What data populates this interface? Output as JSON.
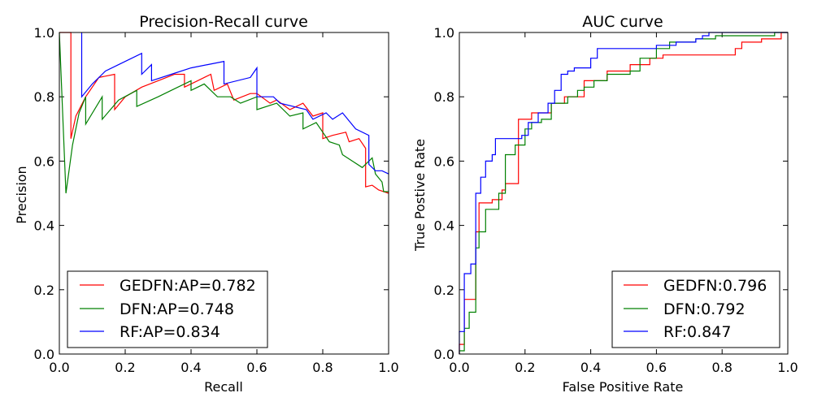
{
  "chart_data": [
    {
      "type": "line",
      "title": "Precision-Recall curve",
      "xlabel": "Recall",
      "ylabel": "Precision",
      "xlim": [
        0.0,
        1.0
      ],
      "ylim": [
        0.0,
        1.0
      ],
      "x_ticks": [
        "0.0",
        "0.2",
        "0.4",
        "0.6",
        "0.8",
        "1.0"
      ],
      "y_ticks": [
        "0.0",
        "0.2",
        "0.4",
        "0.6",
        "0.8",
        "1.0"
      ],
      "grid": false,
      "legend_position": "bottom-left",
      "series": [
        {
          "name": "GEDFN",
          "label": "GEDFN:AP=0.782",
          "color": "#ff0000",
          "points": [
            [
              0,
              1
            ],
            [
              0.035,
              1
            ],
            [
              0.035,
              0.67
            ],
            [
              0.05,
              0.74
            ],
            [
              0.08,
              0.8
            ],
            [
              0.12,
              0.86
            ],
            [
              0.168,
              0.87
            ],
            [
              0.168,
              0.76
            ],
            [
              0.2,
              0.8
            ],
            [
              0.25,
              0.83
            ],
            [
              0.3,
              0.85
            ],
            [
              0.35,
              0.87
            ],
            [
              0.38,
              0.87
            ],
            [
              0.38,
              0.83
            ],
            [
              0.42,
              0.85
            ],
            [
              0.46,
              0.87
            ],
            [
              0.47,
              0.82
            ],
            [
              0.51,
              0.84
            ],
            [
              0.53,
              0.79
            ],
            [
              0.58,
              0.81
            ],
            [
              0.6,
              0.81
            ],
            [
              0.64,
              0.78
            ],
            [
              0.66,
              0.79
            ],
            [
              0.7,
              0.76
            ],
            [
              0.74,
              0.78
            ],
            [
              0.77,
              0.74
            ],
            [
              0.8,
              0.75
            ],
            [
              0.8,
              0.67
            ],
            [
              0.83,
              0.68
            ],
            [
              0.87,
              0.69
            ],
            [
              0.88,
              0.66
            ],
            [
              0.91,
              0.67
            ],
            [
              0.93,
              0.64
            ],
            [
              0.93,
              0.52
            ],
            [
              0.95,
              0.525
            ],
            [
              0.97,
              0.51
            ],
            [
              1.0,
              0.5
            ]
          ]
        },
        {
          "name": "DFN",
          "label": "DFN:AP=0.748",
          "color": "#008000",
          "points": [
            [
              0,
              1
            ],
            [
              0.02,
              0.5
            ],
            [
              0.04,
              0.65
            ],
            [
              0.06,
              0.75
            ],
            [
              0.08,
              0.8
            ],
            [
              0.08,
              0.715
            ],
            [
              0.13,
              0.8
            ],
            [
              0.13,
              0.73
            ],
            [
              0.18,
              0.79
            ],
            [
              0.235,
              0.82
            ],
            [
              0.235,
              0.77
            ],
            [
              0.3,
              0.8
            ],
            [
              0.36,
              0.83
            ],
            [
              0.4,
              0.85
            ],
            [
              0.4,
              0.82
            ],
            [
              0.44,
              0.84
            ],
            [
              0.48,
              0.8
            ],
            [
              0.52,
              0.8
            ],
            [
              0.55,
              0.78
            ],
            [
              0.6,
              0.8
            ],
            [
              0.6,
              0.76
            ],
            [
              0.66,
              0.78
            ],
            [
              0.7,
              0.74
            ],
            [
              0.74,
              0.75
            ],
            [
              0.74,
              0.7
            ],
            [
              0.78,
              0.72
            ],
            [
              0.8,
              0.69
            ],
            [
              0.82,
              0.66
            ],
            [
              0.85,
              0.65
            ],
            [
              0.86,
              0.62
            ],
            [
              0.89,
              0.6
            ],
            [
              0.92,
              0.58
            ],
            [
              0.95,
              0.61
            ],
            [
              0.96,
              0.56
            ],
            [
              0.98,
              0.535
            ],
            [
              0.985,
              0.505
            ],
            [
              1.0,
              0.505
            ]
          ]
        },
        {
          "name": "RF",
          "label": "RF:AP=0.834",
          "color": "#0000ff",
          "points": [
            [
              0.068,
              1
            ],
            [
              0.068,
              0.8
            ],
            [
              0.1,
              0.84
            ],
            [
              0.14,
              0.88
            ],
            [
              0.18,
              0.9
            ],
            [
              0.25,
              0.935
            ],
            [
              0.25,
              0.87
            ],
            [
              0.28,
              0.9
            ],
            [
              0.28,
              0.85
            ],
            [
              0.34,
              0.87
            ],
            [
              0.4,
              0.89
            ],
            [
              0.45,
              0.9
            ],
            [
              0.5,
              0.91
            ],
            [
              0.5,
              0.84
            ],
            [
              0.58,
              0.86
            ],
            [
              0.6,
              0.89
            ],
            [
              0.6,
              0.8
            ],
            [
              0.65,
              0.8
            ],
            [
              0.67,
              0.78
            ],
            [
              0.75,
              0.76
            ],
            [
              0.77,
              0.73
            ],
            [
              0.81,
              0.75
            ],
            [
              0.83,
              0.73
            ],
            [
              0.86,
              0.75
            ],
            [
              0.9,
              0.7
            ],
            [
              0.94,
              0.68
            ],
            [
              0.94,
              0.59
            ],
            [
              0.96,
              0.57
            ],
            [
              0.98,
              0.57
            ],
            [
              1.0,
              0.56
            ]
          ]
        }
      ]
    },
    {
      "type": "line",
      "title": "AUC curve",
      "xlabel": "False Positive Rate",
      "ylabel": "True Postive Rate",
      "xlim": [
        0.0,
        1.0
      ],
      "ylim": [
        0.0,
        1.0
      ],
      "x_ticks": [
        "0.0",
        "0.2",
        "0.4",
        "0.6",
        "0.8",
        "1.0"
      ],
      "y_ticks": [
        "0.0",
        "0.2",
        "0.4",
        "0.6",
        "0.8",
        "1.0"
      ],
      "grid": false,
      "legend_position": "bottom-right",
      "series": [
        {
          "name": "GEDFN",
          "label": "GEDFN:0.796",
          "color": "#ff0000",
          "points": [
            [
              0,
              0
            ],
            [
              0,
              0.03
            ],
            [
              0.015,
              0.03
            ],
            [
              0.015,
              0.17
            ],
            [
              0.05,
              0.17
            ],
            [
              0.05,
              0.38
            ],
            [
              0.06,
              0.38
            ],
            [
              0.06,
              0.47
            ],
            [
              0.1,
              0.47
            ],
            [
              0.1,
              0.48
            ],
            [
              0.13,
              0.48
            ],
            [
              0.13,
              0.51
            ],
            [
              0.14,
              0.51
            ],
            [
              0.14,
              0.53
            ],
            [
              0.18,
              0.53
            ],
            [
              0.18,
              0.73
            ],
            [
              0.22,
              0.73
            ],
            [
              0.22,
              0.75
            ],
            [
              0.28,
              0.75
            ],
            [
              0.28,
              0.78
            ],
            [
              0.32,
              0.78
            ],
            [
              0.32,
              0.8
            ],
            [
              0.38,
              0.8
            ],
            [
              0.38,
              0.85
            ],
            [
              0.45,
              0.85
            ],
            [
              0.45,
              0.88
            ],
            [
              0.52,
              0.88
            ],
            [
              0.52,
              0.9
            ],
            [
              0.58,
              0.9
            ],
            [
              0.58,
              0.92
            ],
            [
              0.62,
              0.92
            ],
            [
              0.62,
              0.93
            ],
            [
              0.7,
              0.93
            ],
            [
              0.7,
              0.93
            ],
            [
              0.84,
              0.93
            ],
            [
              0.84,
              0.95
            ],
            [
              0.86,
              0.95
            ],
            [
              0.86,
              0.97
            ],
            [
              0.92,
              0.97
            ],
            [
              0.92,
              0.98
            ],
            [
              0.98,
              0.98
            ],
            [
              0.98,
              1.0
            ],
            [
              1.0,
              1.0
            ]
          ]
        },
        {
          "name": "DFN",
          "label": "DFN:0.792",
          "color": "#008000",
          "points": [
            [
              0,
              0
            ],
            [
              0,
              0.01
            ],
            [
              0.015,
              0.01
            ],
            [
              0.015,
              0.08
            ],
            [
              0.03,
              0.08
            ],
            [
              0.03,
              0.13
            ],
            [
              0.05,
              0.13
            ],
            [
              0.05,
              0.33
            ],
            [
              0.06,
              0.33
            ],
            [
              0.06,
              0.38
            ],
            [
              0.08,
              0.38
            ],
            [
              0.08,
              0.45
            ],
            [
              0.12,
              0.45
            ],
            [
              0.12,
              0.5
            ],
            [
              0.14,
              0.5
            ],
            [
              0.14,
              0.62
            ],
            [
              0.17,
              0.62
            ],
            [
              0.17,
              0.65
            ],
            [
              0.2,
              0.65
            ],
            [
              0.2,
              0.7
            ],
            [
              0.22,
              0.7
            ],
            [
              0.22,
              0.72
            ],
            [
              0.25,
              0.72
            ],
            [
              0.25,
              0.73
            ],
            [
              0.28,
              0.73
            ],
            [
              0.28,
              0.78
            ],
            [
              0.33,
              0.78
            ],
            [
              0.33,
              0.8
            ],
            [
              0.36,
              0.8
            ],
            [
              0.36,
              0.82
            ],
            [
              0.38,
              0.82
            ],
            [
              0.38,
              0.83
            ],
            [
              0.41,
              0.83
            ],
            [
              0.41,
              0.85
            ],
            [
              0.45,
              0.85
            ],
            [
              0.45,
              0.87
            ],
            [
              0.52,
              0.87
            ],
            [
              0.52,
              0.88
            ],
            [
              0.55,
              0.88
            ],
            [
              0.55,
              0.92
            ],
            [
              0.6,
              0.92
            ],
            [
              0.6,
              0.95
            ],
            [
              0.64,
              0.95
            ],
            [
              0.64,
              0.97
            ],
            [
              0.72,
              0.97
            ],
            [
              0.72,
              0.98
            ],
            [
              0.78,
              0.98
            ],
            [
              0.78,
              0.99
            ],
            [
              0.96,
              0.99
            ],
            [
              0.96,
              1.0
            ],
            [
              1.0,
              1.0
            ]
          ]
        },
        {
          "name": "RF",
          "label": "RF:0.847",
          "color": "#0000ff",
          "points": [
            [
              0,
              0
            ],
            [
              0,
              0.07
            ],
            [
              0.015,
              0.07
            ],
            [
              0.015,
              0.25
            ],
            [
              0.035,
              0.25
            ],
            [
              0.035,
              0.28
            ],
            [
              0.05,
              0.28
            ],
            [
              0.05,
              0.5
            ],
            [
              0.065,
              0.5
            ],
            [
              0.065,
              0.55
            ],
            [
              0.08,
              0.55
            ],
            [
              0.08,
              0.6
            ],
            [
              0.1,
              0.6
            ],
            [
              0.1,
              0.62
            ],
            [
              0.11,
              0.62
            ],
            [
              0.11,
              0.67
            ],
            [
              0.19,
              0.67
            ],
            [
              0.19,
              0.68
            ],
            [
              0.21,
              0.68
            ],
            [
              0.21,
              0.72
            ],
            [
              0.24,
              0.72
            ],
            [
              0.24,
              0.75
            ],
            [
              0.27,
              0.75
            ],
            [
              0.27,
              0.78
            ],
            [
              0.29,
              0.78
            ],
            [
              0.29,
              0.82
            ],
            [
              0.31,
              0.82
            ],
            [
              0.31,
              0.87
            ],
            [
              0.33,
              0.87
            ],
            [
              0.33,
              0.88
            ],
            [
              0.35,
              0.88
            ],
            [
              0.35,
              0.89
            ],
            [
              0.4,
              0.89
            ],
            [
              0.4,
              0.92
            ],
            [
              0.42,
              0.92
            ],
            [
              0.42,
              0.95
            ],
            [
              0.6,
              0.95
            ],
            [
              0.6,
              0.96
            ],
            [
              0.66,
              0.96
            ],
            [
              0.66,
              0.97
            ],
            [
              0.72,
              0.97
            ],
            [
              0.72,
              0.98
            ],
            [
              0.74,
              0.98
            ],
            [
              0.74,
              0.99
            ],
            [
              0.76,
              0.99
            ],
            [
              0.76,
              1.0
            ],
            [
              1.0,
              1.0
            ]
          ]
        }
      ]
    }
  ]
}
